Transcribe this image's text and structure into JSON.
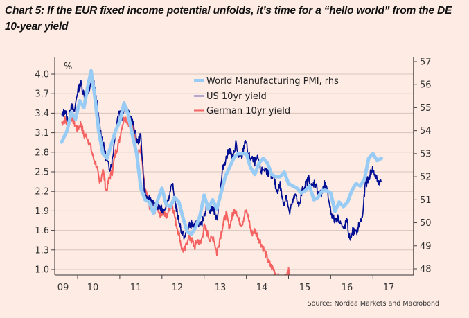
{
  "title": "Chart 5: If the EUR fixed income potential unfolds, it’s time for a “hello world” from the DE 10-year yield",
  "source": "Source: Nordea Markets and Macrobond",
  "chart_data": {
    "type": "line",
    "title": "Chart 5: If the EUR fixed income potential unfolds, it’s time for a “hello world” from the DE 10-year yield",
    "left_axis": {
      "label": "%",
      "ticks": [
        "1.0",
        "1.3",
        "1.6",
        "1.9",
        "2.2",
        "2.5",
        "2.8",
        "3.1",
        "3.4",
        "3.7",
        "4.0"
      ],
      "range": [
        0.95,
        4.2
      ]
    },
    "right_axis": {
      "label": "",
      "ticks": [
        "48",
        "49",
        "50",
        "51",
        "52",
        "53",
        "54",
        "55",
        "56",
        "57"
      ],
      "range": [
        47.9,
        57.0
      ]
    },
    "x_axis": {
      "labels": [
        "09",
        "10",
        "11",
        "12",
        "13",
        "14",
        "15",
        "16",
        "17"
      ],
      "range": [
        2009.6,
        2017.55
      ]
    },
    "grid": true,
    "legend": {
      "placement": "top-center",
      "entries": [
        "World Manufacturing PMI, rhs",
        "US 10yr yield",
        "German 10yr yield"
      ]
    },
    "colors": {
      "pmi": "#99ccf5",
      "us": "#000e94",
      "de": "#f56262",
      "background": "#fdebe4",
      "grid": "#d9c4bc"
    },
    "series": [
      {
        "name": "World Manufacturing PMI, rhs",
        "axis": "right",
        "x": [
          2009.62,
          2009.75,
          2009.85,
          2009.95,
          2010.05,
          2010.15,
          2010.25,
          2010.32,
          2010.4,
          2010.5,
          2010.6,
          2010.7,
          2010.8,
          2010.9,
          2011.0,
          2011.1,
          2011.2,
          2011.3,
          2011.4,
          2011.5,
          2011.6,
          2011.7,
          2011.8,
          2011.9,
          2012.0,
          2012.1,
          2012.2,
          2012.3,
          2012.4,
          2012.5,
          2012.6,
          2012.7,
          2012.8,
          2012.9,
          2013.0,
          2013.1,
          2013.2,
          2013.3,
          2013.4,
          2013.5,
          2013.6,
          2013.7,
          2013.8,
          2013.9,
          2014.0,
          2014.1,
          2014.2,
          2014.3,
          2014.4,
          2014.5,
          2014.6,
          2014.7,
          2014.8,
          2014.9,
          2015.0,
          2015.1,
          2015.2,
          2015.3,
          2015.4,
          2015.5,
          2015.6,
          2015.7,
          2015.8,
          2015.9,
          2016.0,
          2016.1,
          2016.2,
          2016.3,
          2016.4,
          2016.5,
          2016.6,
          2016.7,
          2016.8,
          2016.9,
          2017.0,
          2017.1,
          2017.2
        ],
        "values": [
          53.5,
          54.0,
          54.8,
          54.5,
          55.3,
          55.0,
          56.0,
          56.6,
          55.6,
          54.0,
          53.0,
          52.8,
          53.4,
          54.0,
          54.4,
          55.2,
          54.7,
          53.8,
          53.0,
          51.5,
          51.0,
          50.9,
          50.4,
          51.0,
          51.5,
          50.8,
          50.7,
          51.1,
          50.9,
          50.2,
          49.6,
          49.5,
          49.8,
          50.3,
          51.2,
          50.6,
          51.0,
          50.6,
          51.3,
          52.0,
          52.4,
          52.8,
          53.0,
          53.0,
          53.0,
          52.4,
          52.1,
          52.6,
          52.8,
          52.6,
          52.1,
          52.0,
          52.0,
          52.2,
          51.7,
          51.6,
          51.5,
          51.3,
          51.4,
          51.6,
          51.0,
          51.1,
          51.4,
          51.4,
          51.3,
          50.5,
          50.9,
          50.7,
          50.9,
          51.4,
          51.7,
          51.6,
          51.9,
          52.8,
          53.0,
          52.7,
          52.8
        ]
      },
      {
        "name": "US 10yr yield",
        "axis": "left",
        "x": [
          2009.62,
          2009.7,
          2009.78,
          2009.85,
          2009.92,
          2010.0,
          2010.08,
          2010.15,
          2010.22,
          2010.3,
          2010.38,
          2010.45,
          2010.52,
          2010.6,
          2010.68,
          2010.75,
          2010.82,
          2010.9,
          2010.98,
          2011.05,
          2011.12,
          2011.2,
          2011.28,
          2011.35,
          2011.42,
          2011.5,
          2011.58,
          2011.65,
          2011.72,
          2011.8,
          2011.88,
          2011.95,
          2012.02,
          2012.1,
          2012.18,
          2012.25,
          2012.32,
          2012.4,
          2012.48,
          2012.55,
          2012.62,
          2012.7,
          2012.78,
          2012.85,
          2012.92,
          2013.0,
          2013.08,
          2013.15,
          2013.22,
          2013.3,
          2013.38,
          2013.45,
          2013.52,
          2013.6,
          2013.68,
          2013.75,
          2013.82,
          2013.9,
          2013.98,
          2014.05,
          2014.12,
          2014.2,
          2014.28,
          2014.35,
          2014.42,
          2014.5,
          2014.58,
          2014.65,
          2014.72,
          2014.8,
          2014.88,
          2014.95,
          2015.02,
          2015.1,
          2015.18,
          2015.25,
          2015.32,
          2015.4,
          2015.48,
          2015.55,
          2015.62,
          2015.7,
          2015.78,
          2015.85,
          2015.92,
          2016.0,
          2016.08,
          2016.15,
          2016.22,
          2016.3,
          2016.38,
          2016.45,
          2016.52,
          2016.6,
          2016.68,
          2016.75,
          2016.82,
          2016.9,
          2016.98,
          2017.05,
          2017.12,
          2017.2
        ],
        "values": [
          3.35,
          3.45,
          3.25,
          3.55,
          3.4,
          3.75,
          3.85,
          3.7,
          3.65,
          3.8,
          3.9,
          3.6,
          3.2,
          2.95,
          2.7,
          2.55,
          2.65,
          3.15,
          3.45,
          3.35,
          3.55,
          3.4,
          3.3,
          3.15,
          2.95,
          3.05,
          2.25,
          2.05,
          2.1,
          2.0,
          1.95,
          1.95,
          1.9,
          2.0,
          2.15,
          2.3,
          2.0,
          1.75,
          1.55,
          1.5,
          1.65,
          1.7,
          1.65,
          1.75,
          1.65,
          1.85,
          2.0,
          1.9,
          1.95,
          1.75,
          2.2,
          2.6,
          2.7,
          2.85,
          2.7,
          2.95,
          2.7,
          2.75,
          3.0,
          2.75,
          2.7,
          2.65,
          2.7,
          2.5,
          2.55,
          2.5,
          2.45,
          2.4,
          2.2,
          2.3,
          2.0,
          2.15,
          1.85,
          2.05,
          2.15,
          1.95,
          2.2,
          2.3,
          2.4,
          2.25,
          2.35,
          2.2,
          2.15,
          2.3,
          2.2,
          1.9,
          1.75,
          1.8,
          1.75,
          1.6,
          1.75,
          1.45,
          1.6,
          1.55,
          1.7,
          1.8,
          2.3,
          2.4,
          2.55,
          2.45,
          2.35,
          2.35
        ]
      },
      {
        "name": "German 10yr yield",
        "axis": "left",
        "x": [
          2009.62,
          2009.7,
          2009.78,
          2009.85,
          2009.92,
          2010.0,
          2010.08,
          2010.15,
          2010.22,
          2010.3,
          2010.38,
          2010.45,
          2010.52,
          2010.6,
          2010.68,
          2010.75,
          2010.82,
          2010.9,
          2010.98,
          2011.05,
          2011.12,
          2011.2,
          2011.28,
          2011.35,
          2011.42,
          2011.5,
          2011.58,
          2011.65,
          2011.72,
          2011.8,
          2011.88,
          2011.95,
          2012.02,
          2012.1,
          2012.18,
          2012.25,
          2012.32,
          2012.4,
          2012.48,
          2012.55,
          2012.62,
          2012.7,
          2012.78,
          2012.85,
          2012.92,
          2013.0,
          2013.08,
          2013.15,
          2013.22,
          2013.3,
          2013.38,
          2013.45,
          2013.52,
          2013.6,
          2013.68,
          2013.75,
          2013.82,
          2013.9,
          2013.98,
          2014.05,
          2014.12,
          2014.2,
          2014.28,
          2014.35,
          2014.42,
          2014.5,
          2014.58,
          2014.65,
          2014.72,
          2014.8,
          2014.88,
          2014.98
        ],
        "values": [
          3.25,
          3.3,
          3.2,
          3.35,
          3.25,
          3.15,
          3.25,
          3.05,
          3.05,
          2.9,
          2.7,
          2.6,
          2.3,
          2.55,
          2.2,
          2.4,
          2.5,
          2.8,
          2.95,
          3.2,
          3.35,
          3.25,
          3.25,
          3.1,
          2.75,
          2.85,
          2.3,
          2.1,
          1.95,
          1.85,
          2.0,
          1.85,
          1.9,
          1.8,
          1.95,
          2.0,
          1.75,
          1.55,
          1.3,
          1.3,
          1.5,
          1.45,
          1.35,
          1.45,
          1.4,
          1.65,
          1.55,
          1.45,
          1.5,
          1.25,
          1.5,
          1.7,
          1.85,
          1.65,
          1.85,
          1.95,
          1.75,
          1.7,
          1.9,
          1.8,
          1.55,
          1.6,
          1.5,
          1.4,
          1.3,
          1.15,
          1.05,
          1.0,
          0.9,
          0.85,
          0.8,
          1.0
        ]
      }
    ]
  }
}
